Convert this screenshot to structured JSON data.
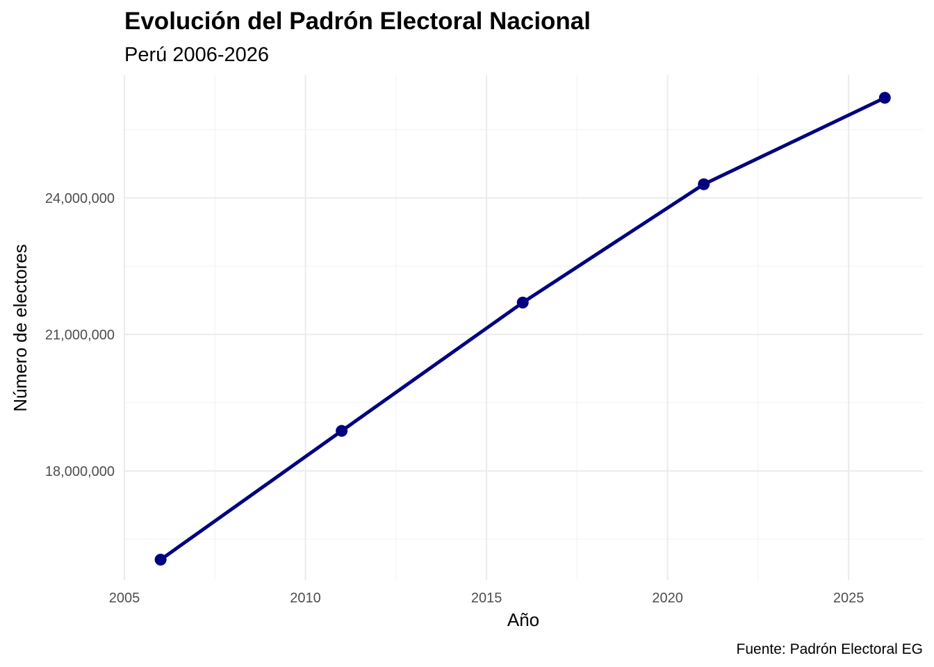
{
  "chart_data": {
    "type": "line",
    "title": "Evolución del Padrón Electoral Nacional",
    "subtitle": "Perú 2006-2026",
    "xlabel": "Año",
    "ylabel": "Número de electores",
    "caption": "Fuente: Padrón Electoral EG",
    "x": [
      2006,
      2011,
      2016,
      2021,
      2026
    ],
    "values": [
      16050000,
      18880000,
      21700000,
      24300000,
      26200000
    ],
    "xlim": [
      2005,
      2027.05
    ],
    "ylim": [
      15600000,
      26700000
    ],
    "x_ticks": [
      2005,
      2010,
      2015,
      2020,
      2025
    ],
    "x_tick_labels": [
      "2005",
      "2010",
      "2015",
      "2020",
      "2025"
    ],
    "x_minor_ticks": [
      2007.5,
      2012.5,
      2017.5,
      2022.5
    ],
    "y_ticks": [
      18000000,
      21000000,
      24000000
    ],
    "y_tick_labels": [
      "18,000,000",
      "21,000,000",
      "24,000,000"
    ],
    "y_minor_ticks": [
      16500000,
      19500000,
      22500000,
      25500000
    ],
    "grid": true,
    "legend": "none",
    "line_color": "#000080"
  }
}
